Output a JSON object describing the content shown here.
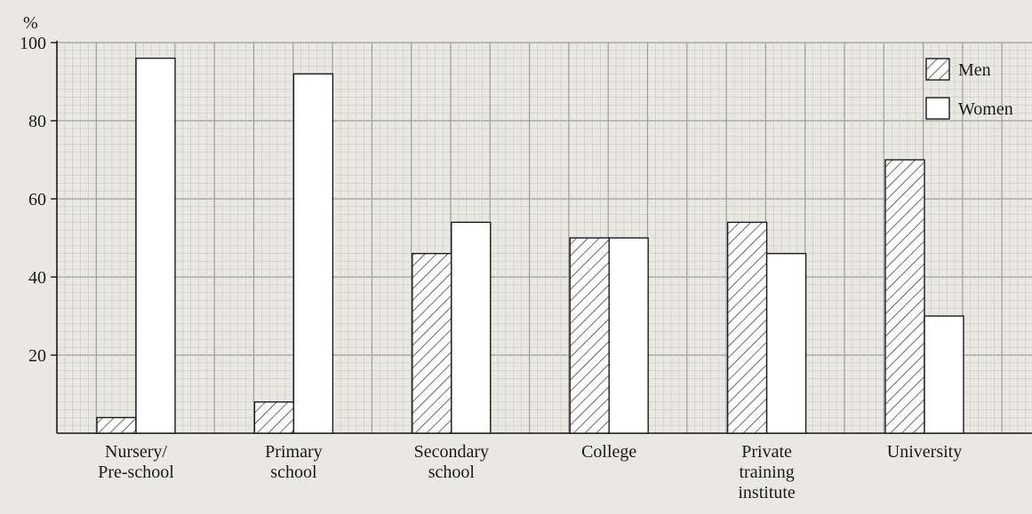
{
  "chart_data": {
    "type": "bar",
    "title": "",
    "xlabel": "",
    "ylabel": "%",
    "ylim": [
      0,
      100
    ],
    "yticks": [
      "20",
      "40",
      "60",
      "80",
      "100"
    ],
    "grid": true,
    "legend_position": "top-right",
    "categories": [
      "Nursery/\nPre-school",
      "Primary\nschool",
      "Secondary\nschool",
      "College",
      "Private\ntraining\ninstitute",
      "University"
    ],
    "series": [
      {
        "name": "Men",
        "pattern": "hatched",
        "values": [
          4,
          8,
          46,
          50,
          54,
          70
        ]
      },
      {
        "name": "Women",
        "pattern": "white",
        "values": [
          96,
          92,
          54,
          50,
          46,
          30
        ]
      }
    ],
    "colors": {
      "background": "#e9e8e3",
      "grid_minor": "#c9c9c4",
      "grid_major": "#9e9e99",
      "bar_fill": "#ffffff",
      "ink": "#1a1a1a"
    }
  }
}
